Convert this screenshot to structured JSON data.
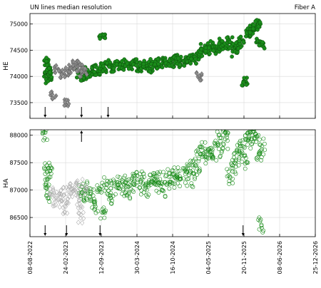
{
  "header": {
    "title": "UN lines median resolution",
    "fiber": "Fiber A"
  },
  "colors": {
    "primary": "#1a8c1a",
    "primary_edge": "#0b4d0b",
    "secondary": "#8c8c8c",
    "secondary_edge": "#555555",
    "grid": "#d9d9d9",
    "frame": "#000000"
  },
  "chart_data": [
    {
      "type": "scatter",
      "panel": "top",
      "ylabel": "HE",
      "ylim": [
        73200,
        75200
      ],
      "yticks": [
        73500,
        74000,
        74500,
        75000
      ],
      "xlim": [
        "2022-08-08",
        "2026-12-25"
      ],
      "series": [
        {
          "marker": "filled-circle",
          "points": [
            [
              "2022-11-08",
              74300
            ],
            [
              "2022-11-12",
              74050
            ],
            [
              "2022-11-15",
              74150
            ],
            [
              "2022-11-20",
              73950
            ],
            [
              "2022-11-25",
              74100
            ],
            [
              "2023-05-15",
              74050
            ],
            [
              "2023-06-01",
              74000
            ],
            [
              "2023-06-20",
              74100
            ],
            [
              "2023-07-10",
              74050
            ],
            [
              "2023-08-01",
              74150
            ],
            [
              "2023-08-20",
              74100
            ],
            [
              "2023-09-10",
              74200
            ],
            [
              "2023-09-16",
              74800
            ],
            [
              "2023-10-01",
              74150
            ],
            [
              "2023-10-20",
              74250
            ],
            [
              "2023-11-10",
              74150
            ],
            [
              "2023-12-01",
              74200
            ],
            [
              "2023-12-20",
              74250
            ],
            [
              "2024-01-10",
              74150
            ],
            [
              "2024-02-01",
              74250
            ],
            [
              "2024-02-20",
              74200
            ],
            [
              "2024-03-15",
              74250
            ],
            [
              "2024-04-10",
              74150
            ],
            [
              "2024-05-01",
              74200
            ],
            [
              "2024-05-20",
              74250
            ],
            [
              "2024-06-10",
              74100
            ],
            [
              "2024-07-01",
              74250
            ],
            [
              "2024-07-20",
              74200
            ],
            [
              "2024-08-10",
              74300
            ],
            [
              "2024-09-01",
              74250
            ],
            [
              "2024-09-20",
              74300
            ],
            [
              "2024-10-10",
              74250
            ],
            [
              "2024-11-01",
              74350
            ],
            [
              "2024-11-20",
              74300
            ],
            [
              "2024-12-10",
              74250
            ],
            [
              "2025-01-01",
              74300
            ],
            [
              "2025-01-20",
              74350
            ],
            [
              "2025-02-10",
              74300
            ],
            [
              "2025-03-01",
              74400
            ],
            [
              "2025-03-20",
              74450
            ],
            [
              "2025-04-10",
              74550
            ],
            [
              "2025-05-01",
              74500
            ],
            [
              "2025-05-20",
              74600
            ],
            [
              "2025-06-10",
              74500
            ],
            [
              "2025-07-01",
              74550
            ],
            [
              "2025-07-20",
              74650
            ],
            [
              "2025-08-10",
              74600
            ],
            [
              "2025-08-30",
              74700
            ],
            [
              "2025-09-15",
              74550
            ],
            [
              "2025-10-01",
              74450
            ],
            [
              "2025-10-20",
              74600
            ],
            [
              "2025-11-10",
              74700
            ],
            [
              "2025-11-25",
              73900
            ],
            [
              "2025-12-10",
              74800
            ],
            [
              "2025-12-25",
              74850
            ],
            [
              "2026-01-10",
              74900
            ],
            [
              "2026-01-25",
              74950
            ],
            [
              "2026-02-05",
              75000
            ],
            [
              "2026-02-15",
              74650
            ],
            [
              "2026-02-25",
              74600
            ]
          ]
        },
        {
          "marker": "diamond",
          "points": [
            [
              "2022-12-15",
              73650
            ],
            [
              "2023-01-10",
              74150
            ],
            [
              "2023-02-10",
              74050
            ],
            [
              "2023-02-25",
              73480
            ],
            [
              "2023-03-10",
              74100
            ],
            [
              "2023-04-01",
              74150
            ],
            [
              "2023-04-20",
              74250
            ],
            [
              "2023-05-10",
              74050
            ],
            [
              "2023-05-25",
              74200
            ],
            [
              "2023-06-05",
              74100
            ],
            [
              "2025-03-15",
              74000
            ]
          ]
        }
      ],
      "arrows": [
        {
          "date": "2022-11-01",
          "dir": "down"
        },
        {
          "date": "2023-05-24",
          "dir": "down"
        },
        {
          "date": "2023-10-20",
          "dir": "down"
        }
      ]
    },
    {
      "type": "scatter",
      "panel": "bottom",
      "ylabel": "HA",
      "ylim": [
        86150,
        88100
      ],
      "yticks": [
        86500,
        87000,
        87500,
        88000
      ],
      "xlim": [
        "2022-08-08",
        "2026-12-25"
      ],
      "xticks": [
        "08-08-2022",
        "24-02-2023",
        "12-09-2023",
        "30-03-2024",
        "16-10-2024",
        "04-05-2025",
        "20-11-2025",
        "08-06-2026",
        "25-12-2026"
      ],
      "series": [
        {
          "marker": "open-circle",
          "points": [
            [
              "2022-11-05",
              88050
            ],
            [
              "2022-11-08",
              87400
            ],
            [
              "2022-11-12",
              87100
            ],
            [
              "2022-11-18",
              86900
            ],
            [
              "2022-11-25",
              87300
            ],
            [
              "2023-05-25",
              87000
            ],
            [
              "2023-06-10",
              86850
            ],
            [
              "2023-07-01",
              87050
            ],
            [
              "2023-07-20",
              86900
            ],
            [
              "2023-08-10",
              86700
            ],
            [
              "2023-09-01",
              87000
            ],
            [
              "2023-09-20",
              86600
            ],
            [
              "2023-10-10",
              87100
            ],
            [
              "2023-11-01",
              86900
            ],
            [
              "2023-11-20",
              87050
            ],
            [
              "2023-12-10",
              87100
            ],
            [
              "2024-01-01",
              87000
            ],
            [
              "2024-01-20",
              87150
            ],
            [
              "2024-02-10",
              86950
            ],
            [
              "2024-03-01",
              87100
            ],
            [
              "2024-03-20",
              87200
            ],
            [
              "2024-04-10",
              87050
            ],
            [
              "2024-05-01",
              87200
            ],
            [
              "2024-05-20",
              87000
            ],
            [
              "2024-06-10",
              87150
            ],
            [
              "2024-07-01",
              87250
            ],
            [
              "2024-07-20",
              87100
            ],
            [
              "2024-08-10",
              87200
            ],
            [
              "2024-09-01",
              87000
            ],
            [
              "2024-09-20",
              87250
            ],
            [
              "2024-10-10",
              87150
            ],
            [
              "2024-11-01",
              87300
            ],
            [
              "2024-11-20",
              87200
            ],
            [
              "2024-12-10",
              87250
            ],
            [
              "2025-01-01",
              87350
            ],
            [
              "2025-01-20",
              87200
            ],
            [
              "2025-02-10",
              87450
            ],
            [
              "2025-03-01",
              87300
            ],
            [
              "2025-03-15",
              87650
            ],
            [
              "2025-04-01",
              87750
            ],
            [
              "2025-04-20",
              87600
            ],
            [
              "2025-05-10",
              87700
            ],
            [
              "2025-06-01",
              87650
            ],
            [
              "2025-06-20",
              87950
            ],
            [
              "2025-07-10",
              87750
            ],
            [
              "2025-07-25",
              88050
            ],
            [
              "2025-08-10",
              87900
            ],
            [
              "2025-09-01",
              87250
            ],
            [
              "2025-09-20",
              87400
            ],
            [
              "2025-10-10",
              87550
            ],
            [
              "2025-10-25",
              87700
            ],
            [
              "2025-11-10",
              87800
            ],
            [
              "2025-11-25",
              87500
            ],
            [
              "2025-12-10",
              87900
            ],
            [
              "2025-12-25",
              88050
            ],
            [
              "2026-01-10",
              87950
            ],
            [
              "2026-01-25",
              88000
            ],
            [
              "2026-02-10",
              87650
            ],
            [
              "2026-02-20",
              86350
            ],
            [
              "2026-03-01",
              87800
            ]
          ]
        },
        {
          "marker": "open-diamond",
          "points": [
            [
              "2022-12-10",
              86900
            ],
            [
              "2023-01-01",
              86850
            ],
            [
              "2023-01-20",
              86800
            ],
            [
              "2023-02-10",
              86900
            ],
            [
              "2023-02-25",
              86700
            ],
            [
              "2023-03-15",
              86950
            ],
            [
              "2023-04-01",
              87000
            ],
            [
              "2023-04-20",
              87100
            ],
            [
              "2023-05-05",
              86800
            ],
            [
              "2023-05-20",
              86550
            ],
            [
              "2023-06-05",
              87050
            ]
          ]
        }
      ],
      "arrows": [
        {
          "date": "2022-11-01",
          "dir": "down"
        },
        {
          "date": "2023-03-01",
          "dir": "down"
        },
        {
          "date": "2023-09-05",
          "dir": "down"
        },
        {
          "date": "2025-11-15",
          "dir": "down"
        },
        {
          "date": "2023-05-24",
          "dir": "up"
        }
      ]
    }
  ]
}
